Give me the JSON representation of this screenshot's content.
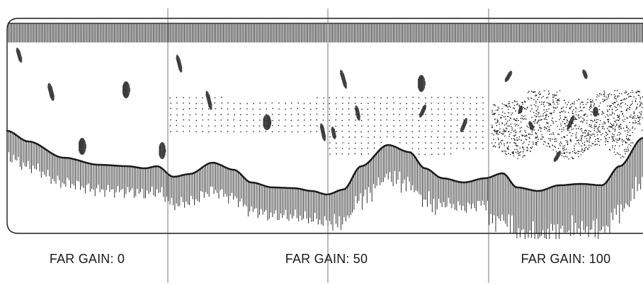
{
  "labels": {
    "panel_0": "FAR GAIN: 0",
    "panel_1": "FAR GAIN: 50",
    "panel_2": "FAR GAIN: 100"
  },
  "colors": {
    "ink": "#1a1a1a",
    "background": "#ffffff"
  }
}
